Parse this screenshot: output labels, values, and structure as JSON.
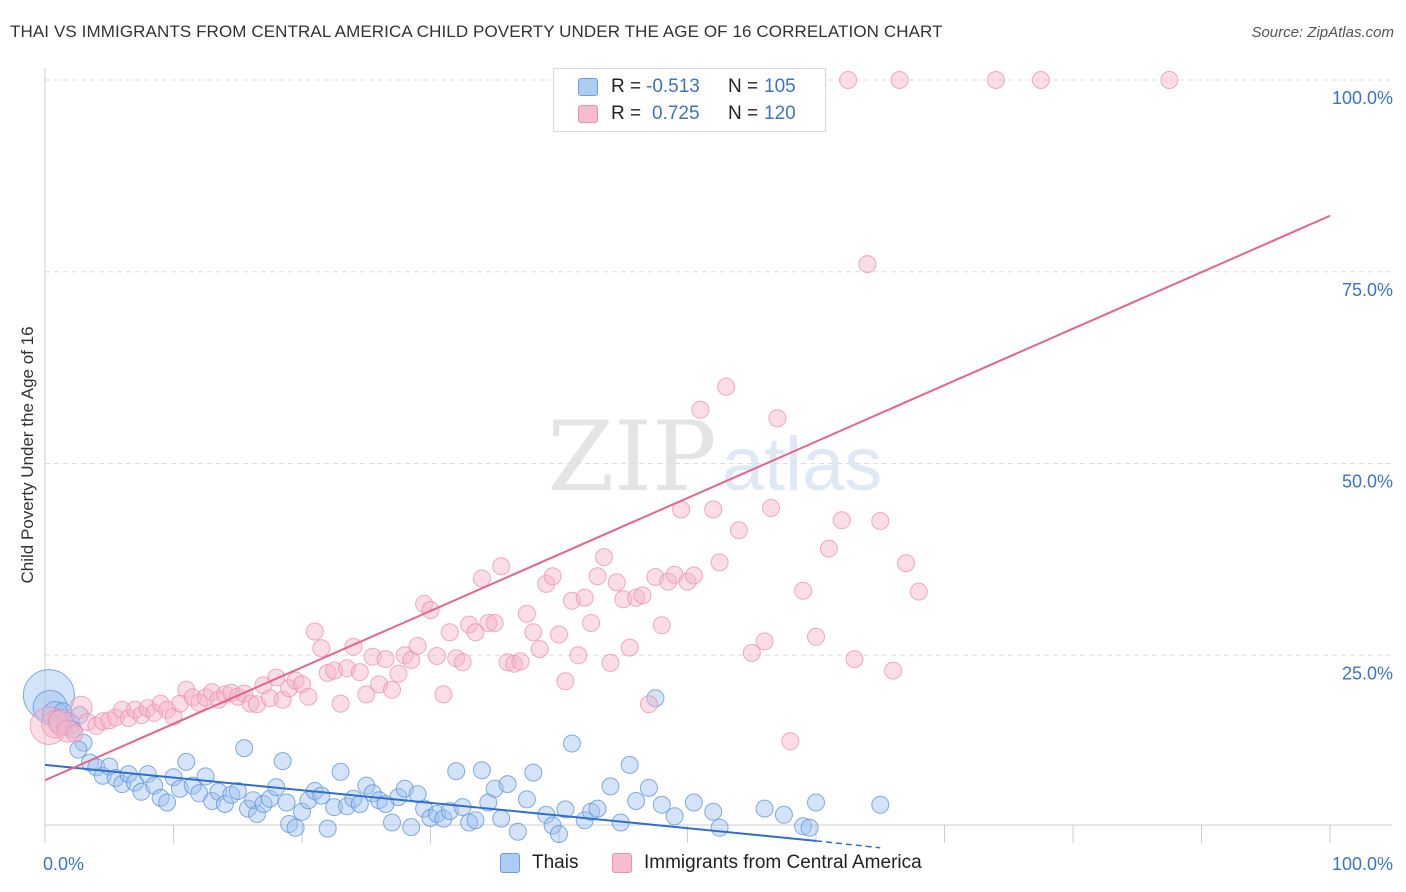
{
  "header": {
    "title": "THAI VS IMMIGRANTS FROM CENTRAL AMERICA CHILD POVERTY UNDER THE AGE OF 16 CORRELATION CHART",
    "source": "Source: ZipAtlas.com"
  },
  "watermark": {
    "zip": "ZIP",
    "atlas": "atlas"
  },
  "legend_top": {
    "rows": [
      {
        "r_label": "R =",
        "r_value": "-0.513",
        "n_label": "N =",
        "n_value": "105",
        "fill": "#aecbf2",
        "stroke": "#6a9fe0"
      },
      {
        "r_label": "R =",
        "r_value": "0.725",
        "n_label": "N =",
        "n_value": "120",
        "fill": "#f7bcd0",
        "stroke": "#ee8fb0"
      }
    ]
  },
  "legend_bottom": {
    "items": [
      {
        "label": "Thais",
        "fill": "#aecbf2",
        "stroke": "#6a9fe0"
      },
      {
        "label": "Immigrants from Central America",
        "fill": "#f7bcd0",
        "stroke": "#ee8fb0"
      }
    ]
  },
  "colors": {
    "blue_fill": "#9fc2ee",
    "blue_stroke": "#5b93da",
    "blue_line": "#2f6fcc",
    "pink_fill": "#f5b3c9",
    "pink_stroke": "#ee8fb0",
    "pink_line": "#e4648f",
    "tick_label": "#3a74c8",
    "grid": "#dddddd"
  },
  "chart_data": {
    "type": "scatter",
    "title": "THAI VS IMMIGRANTS FROM CENTRAL AMERICA CHILD POVERTY UNDER THE AGE OF 16 CORRELATION CHART",
    "xlabel": "",
    "ylabel": "Child Poverty Under the Age of 16",
    "xlim": [
      0,
      100
    ],
    "ylim": [
      0,
      100
    ],
    "x_tick_labels": [
      {
        "value": 0,
        "label": "0.0%"
      },
      {
        "value": 100,
        "label": "100.0%"
      }
    ],
    "y_tick_labels": [
      {
        "value": 25,
        "label": "25.0%"
      },
      {
        "value": 50,
        "label": "50.0%"
      },
      {
        "value": 75,
        "label": "75.0%"
      },
      {
        "value": 100,
        "label": "100.0%"
      }
    ],
    "grid": true,
    "legend_position": "top-center",
    "series": [
      {
        "name": "Thais",
        "color": "#9fc2ee",
        "trend": {
          "x": [
            0,
            60,
            65
          ],
          "y": [
            10.7,
            0.8,
            -0.1
          ]
        },
        "points": [
          [
            0.3,
            19.8,
            3
          ],
          [
            0.4,
            18.2,
            2
          ],
          [
            0.8,
            17.3,
            1.5
          ],
          [
            1.2,
            16.4,
            1.4
          ],
          [
            1.4,
            17.7,
            1
          ],
          [
            1.8,
            16.1,
            1.3
          ],
          [
            2.2,
            15.3,
            1
          ],
          [
            2.7,
            17.2,
            1
          ],
          [
            3.0,
            13.6,
            1
          ],
          [
            2.6,
            12.7,
            1
          ],
          [
            3.5,
            11.0,
            1
          ],
          [
            4.0,
            10.4,
            1
          ],
          [
            4.5,
            9.3,
            1
          ],
          [
            5.0,
            10.5,
            1
          ],
          [
            5.5,
            9.0,
            1
          ],
          [
            6.0,
            8.2,
            1
          ],
          [
            6.5,
            9.5,
            1
          ],
          [
            7.0,
            8.4,
            1
          ],
          [
            7.5,
            7.2,
            1
          ],
          [
            8.0,
            9.5,
            1
          ],
          [
            8.5,
            8.0,
            1
          ],
          [
            9.0,
            6.4,
            1
          ],
          [
            9.5,
            5.8,
            1
          ],
          [
            10.0,
            9.1,
            1
          ],
          [
            10.5,
            7.6,
            1
          ],
          [
            11.0,
            11.1,
            1
          ],
          [
            11.5,
            8.0,
            1
          ],
          [
            12.0,
            7.0,
            1
          ],
          [
            12.5,
            9.2,
            1
          ],
          [
            13.0,
            6.0,
            1
          ],
          [
            13.5,
            7.2,
            1
          ],
          [
            14.0,
            5.6,
            1
          ],
          [
            14.5,
            6.8,
            1
          ],
          [
            15.0,
            7.3,
            1
          ],
          [
            15.5,
            12.9,
            1
          ],
          [
            15.8,
            5.0,
            1
          ],
          [
            16.2,
            6.1,
            1
          ],
          [
            16.5,
            4.3,
            1
          ],
          [
            17.0,
            5.6,
            1
          ],
          [
            17.5,
            6.3,
            1
          ],
          [
            18.0,
            7.8,
            1
          ],
          [
            18.5,
            11.2,
            1
          ],
          [
            18.8,
            5.8,
            1
          ],
          [
            19.0,
            3.0,
            1
          ],
          [
            19.5,
            2.5,
            1
          ],
          [
            20.0,
            4.6,
            1
          ],
          [
            20.5,
            6.1,
            1
          ],
          [
            21.0,
            7.3,
            1
          ],
          [
            21.5,
            6.7,
            1
          ],
          [
            22.0,
            2.4,
            1
          ],
          [
            22.5,
            5.2,
            1
          ],
          [
            23.0,
            9.8,
            1
          ],
          [
            23.5,
            5.3,
            1
          ],
          [
            24.0,
            6.3,
            1
          ],
          [
            24.5,
            5.6,
            1
          ],
          [
            25.0,
            8.0,
            1
          ],
          [
            25.5,
            7.0,
            1
          ],
          [
            26.0,
            6.1,
            1
          ],
          [
            26.5,
            5.6,
            1
          ],
          [
            27.0,
            3.2,
            1
          ],
          [
            27.5,
            6.5,
            1
          ],
          [
            28.0,
            7.6,
            1
          ],
          [
            28.5,
            2.6,
            1
          ],
          [
            29.0,
            6.9,
            1
          ],
          [
            29.5,
            5.0,
            1
          ],
          [
            30.0,
            3.8,
            1
          ],
          [
            30.5,
            4.3,
            1
          ],
          [
            31.0,
            3.7,
            1
          ],
          [
            31.5,
            4.7,
            1
          ],
          [
            32.0,
            9.9,
            1
          ],
          [
            32.5,
            5.2,
            1
          ],
          [
            33.0,
            3.2,
            1
          ],
          [
            33.5,
            3.5,
            1
          ],
          [
            34.0,
            10.0,
            1
          ],
          [
            34.5,
            5.8,
            1
          ],
          [
            35.0,
            7.6,
            1
          ],
          [
            35.5,
            3.7,
            1
          ],
          [
            36.0,
            8.2,
            1
          ],
          [
            36.8,
            2.0,
            1
          ],
          [
            37.5,
            6.2,
            1
          ],
          [
            38.0,
            9.7,
            1
          ],
          [
            39.0,
            4.2,
            1
          ],
          [
            39.5,
            2.8,
            1
          ],
          [
            40.0,
            1.7,
            1
          ],
          [
            40.5,
            4.9,
            1
          ],
          [
            41.0,
            13.5,
            1
          ],
          [
            42.0,
            3.5,
            1
          ],
          [
            42.5,
            4.6,
            1
          ],
          [
            43.0,
            5.0,
            1
          ],
          [
            44.0,
            7.9,
            1
          ],
          [
            44.8,
            3.2,
            1
          ],
          [
            45.5,
            10.7,
            1
          ],
          [
            46.0,
            6.0,
            1
          ],
          [
            47.0,
            7.7,
            1
          ],
          [
            47.5,
            19.4,
            1
          ],
          [
            48.0,
            5.5,
            1
          ],
          [
            49.0,
            4.0,
            1
          ],
          [
            50.5,
            5.8,
            1
          ],
          [
            52.0,
            4.6,
            1
          ],
          [
            52.5,
            2.5,
            1
          ],
          [
            56.0,
            5.0,
            1
          ],
          [
            57.5,
            4.2,
            1
          ],
          [
            59.0,
            2.7,
            1
          ],
          [
            59.5,
            2.5,
            1
          ],
          [
            60.0,
            5.8,
            1
          ],
          [
            65.0,
            5.5,
            1
          ]
        ]
      },
      {
        "name": "Immigrants from Central America",
        "color": "#f5b3c9",
        "trend": {
          "x": [
            0,
            100
          ],
          "y": [
            8.7,
            82.3
          ]
        },
        "points": [
          [
            0.3,
            15.8,
            2.2
          ],
          [
            0.8,
            16.0,
            1.6
          ],
          [
            1.3,
            16.2,
            1.5
          ],
          [
            1.8,
            15.1,
            1.3
          ],
          [
            2.3,
            14.8,
            1
          ],
          [
            2.8,
            18.2,
            1.3
          ],
          [
            3.3,
            16.3,
            1
          ],
          [
            4.0,
            15.8,
            1
          ],
          [
            4.5,
            16.4,
            1
          ],
          [
            5.0,
            16.5,
            1
          ],
          [
            5.5,
            16.9,
            1
          ],
          [
            6.0,
            17.9,
            1
          ],
          [
            6.5,
            16.8,
            1
          ],
          [
            7.0,
            17.9,
            1
          ],
          [
            7.5,
            17.2,
            1
          ],
          [
            8.0,
            18.1,
            1
          ],
          [
            8.5,
            17.5,
            1
          ],
          [
            9.0,
            18.7,
            1
          ],
          [
            9.5,
            17.9,
            1
          ],
          [
            10.0,
            17.0,
            1
          ],
          [
            10.5,
            18.7,
            1
          ],
          [
            11.0,
            20.5,
            1
          ],
          [
            11.5,
            19.5,
            1
          ],
          [
            12.0,
            18.8,
            1
          ],
          [
            12.5,
            19.5,
            1
          ],
          [
            13.0,
            20.2,
            1
          ],
          [
            13.5,
            19.2,
            1
          ],
          [
            14.0,
            19.9,
            1
          ],
          [
            14.5,
            20.1,
            1
          ],
          [
            15.0,
            19.6,
            1
          ],
          [
            15.5,
            20.0,
            1
          ],
          [
            16.0,
            18.7,
            1
          ],
          [
            16.5,
            18.6,
            1
          ],
          [
            17.0,
            21.1,
            1
          ],
          [
            17.5,
            19.4,
            1
          ],
          [
            18.0,
            22.1,
            1
          ],
          [
            18.5,
            19.2,
            1
          ],
          [
            19.0,
            20.7,
            1
          ],
          [
            19.5,
            21.7,
            1
          ],
          [
            20.0,
            21.2,
            1
          ],
          [
            20.5,
            19.6,
            1
          ],
          [
            21.0,
            28.1,
            1
          ],
          [
            21.5,
            25.9,
            1
          ],
          [
            22.0,
            22.7,
            1
          ],
          [
            22.5,
            23.0,
            1
          ],
          [
            23.0,
            18.7,
            1
          ],
          [
            23.5,
            23.3,
            1
          ],
          [
            24.0,
            26.1,
            1
          ],
          [
            24.5,
            22.8,
            1
          ],
          [
            25.0,
            19.9,
            1
          ],
          [
            25.5,
            24.8,
            1
          ],
          [
            26.0,
            21.2,
            1
          ],
          [
            26.5,
            24.5,
            1
          ],
          [
            27.0,
            20.5,
            1
          ],
          [
            27.5,
            22.6,
            1
          ],
          [
            28.0,
            25.0,
            1
          ],
          [
            28.5,
            24.4,
            1
          ],
          [
            29.0,
            26.2,
            1
          ],
          [
            29.5,
            31.7,
            1
          ],
          [
            30.0,
            30.9,
            1
          ],
          [
            30.5,
            24.9,
            1
          ],
          [
            31.0,
            19.9,
            1
          ],
          [
            31.5,
            28.0,
            1
          ],
          [
            32.0,
            24.6,
            1
          ],
          [
            32.5,
            24.1,
            1
          ],
          [
            33.0,
            29.0,
            1
          ],
          [
            33.5,
            28.0,
            1
          ],
          [
            34.0,
            35.0,
            1
          ],
          [
            34.5,
            29.2,
            1
          ],
          [
            35.0,
            29.2,
            1
          ],
          [
            35.5,
            36.6,
            1
          ],
          [
            36.0,
            24.1,
            1
          ],
          [
            36.5,
            23.9,
            1
          ],
          [
            37.0,
            24.2,
            1
          ],
          [
            37.5,
            30.4,
            1
          ],
          [
            38.0,
            28.0,
            1
          ],
          [
            38.5,
            25.8,
            1
          ],
          [
            39.0,
            34.3,
            1
          ],
          [
            39.5,
            35.3,
            1
          ],
          [
            40.0,
            27.7,
            1
          ],
          [
            40.5,
            21.6,
            1
          ],
          [
            41.0,
            32.1,
            1
          ],
          [
            41.5,
            25.0,
            1
          ],
          [
            42.0,
            32.5,
            1
          ],
          [
            42.5,
            29.2,
            1
          ],
          [
            43.0,
            35.3,
            1
          ],
          [
            43.5,
            37.8,
            1
          ],
          [
            44.0,
            24.0,
            1
          ],
          [
            44.5,
            34.5,
            1
          ],
          [
            45.0,
            32.3,
            1
          ],
          [
            45.5,
            26.0,
            1
          ],
          [
            46.0,
            32.5,
            1
          ],
          [
            46.5,
            32.8,
            1
          ],
          [
            47.0,
            18.6,
            1
          ],
          [
            47.5,
            35.2,
            1
          ],
          [
            48.0,
            28.9,
            1
          ],
          [
            48.5,
            34.6,
            1
          ],
          [
            49.0,
            35.5,
            1
          ],
          [
            49.5,
            44.0,
            1
          ],
          [
            50.0,
            34.6,
            1
          ],
          [
            50.5,
            35.4,
            1
          ],
          [
            51.0,
            57.0,
            1
          ],
          [
            52.0,
            44.0,
            1
          ],
          [
            52.5,
            37.1,
            1
          ],
          [
            53.0,
            60.0,
            1
          ],
          [
            54.0,
            41.3,
            1
          ],
          [
            55.0,
            25.3,
            1
          ],
          [
            56.0,
            26.8,
            1
          ],
          [
            56.5,
            44.2,
            1
          ],
          [
            57.0,
            55.9,
            1
          ],
          [
            58.0,
            13.8,
            1
          ],
          [
            59.0,
            33.4,
            1
          ],
          [
            60.0,
            27.4,
            1
          ],
          [
            61.0,
            38.9,
            1
          ],
          [
            62.0,
            42.6,
            1
          ],
          [
            63.0,
            24.5,
            1
          ],
          [
            64.0,
            76.0,
            1
          ],
          [
            65.0,
            42.5,
            1
          ],
          [
            66.0,
            23.0,
            1
          ],
          [
            67.0,
            37.0,
            1
          ],
          [
            68.0,
            33.3,
            1
          ],
          [
            62.5,
            100.0,
            1
          ],
          [
            66.5,
            100.0,
            1
          ],
          [
            74.0,
            100.0,
            1
          ],
          [
            77.5,
            100.0,
            1
          ],
          [
            87.5,
            100.0,
            1
          ]
        ]
      }
    ]
  }
}
